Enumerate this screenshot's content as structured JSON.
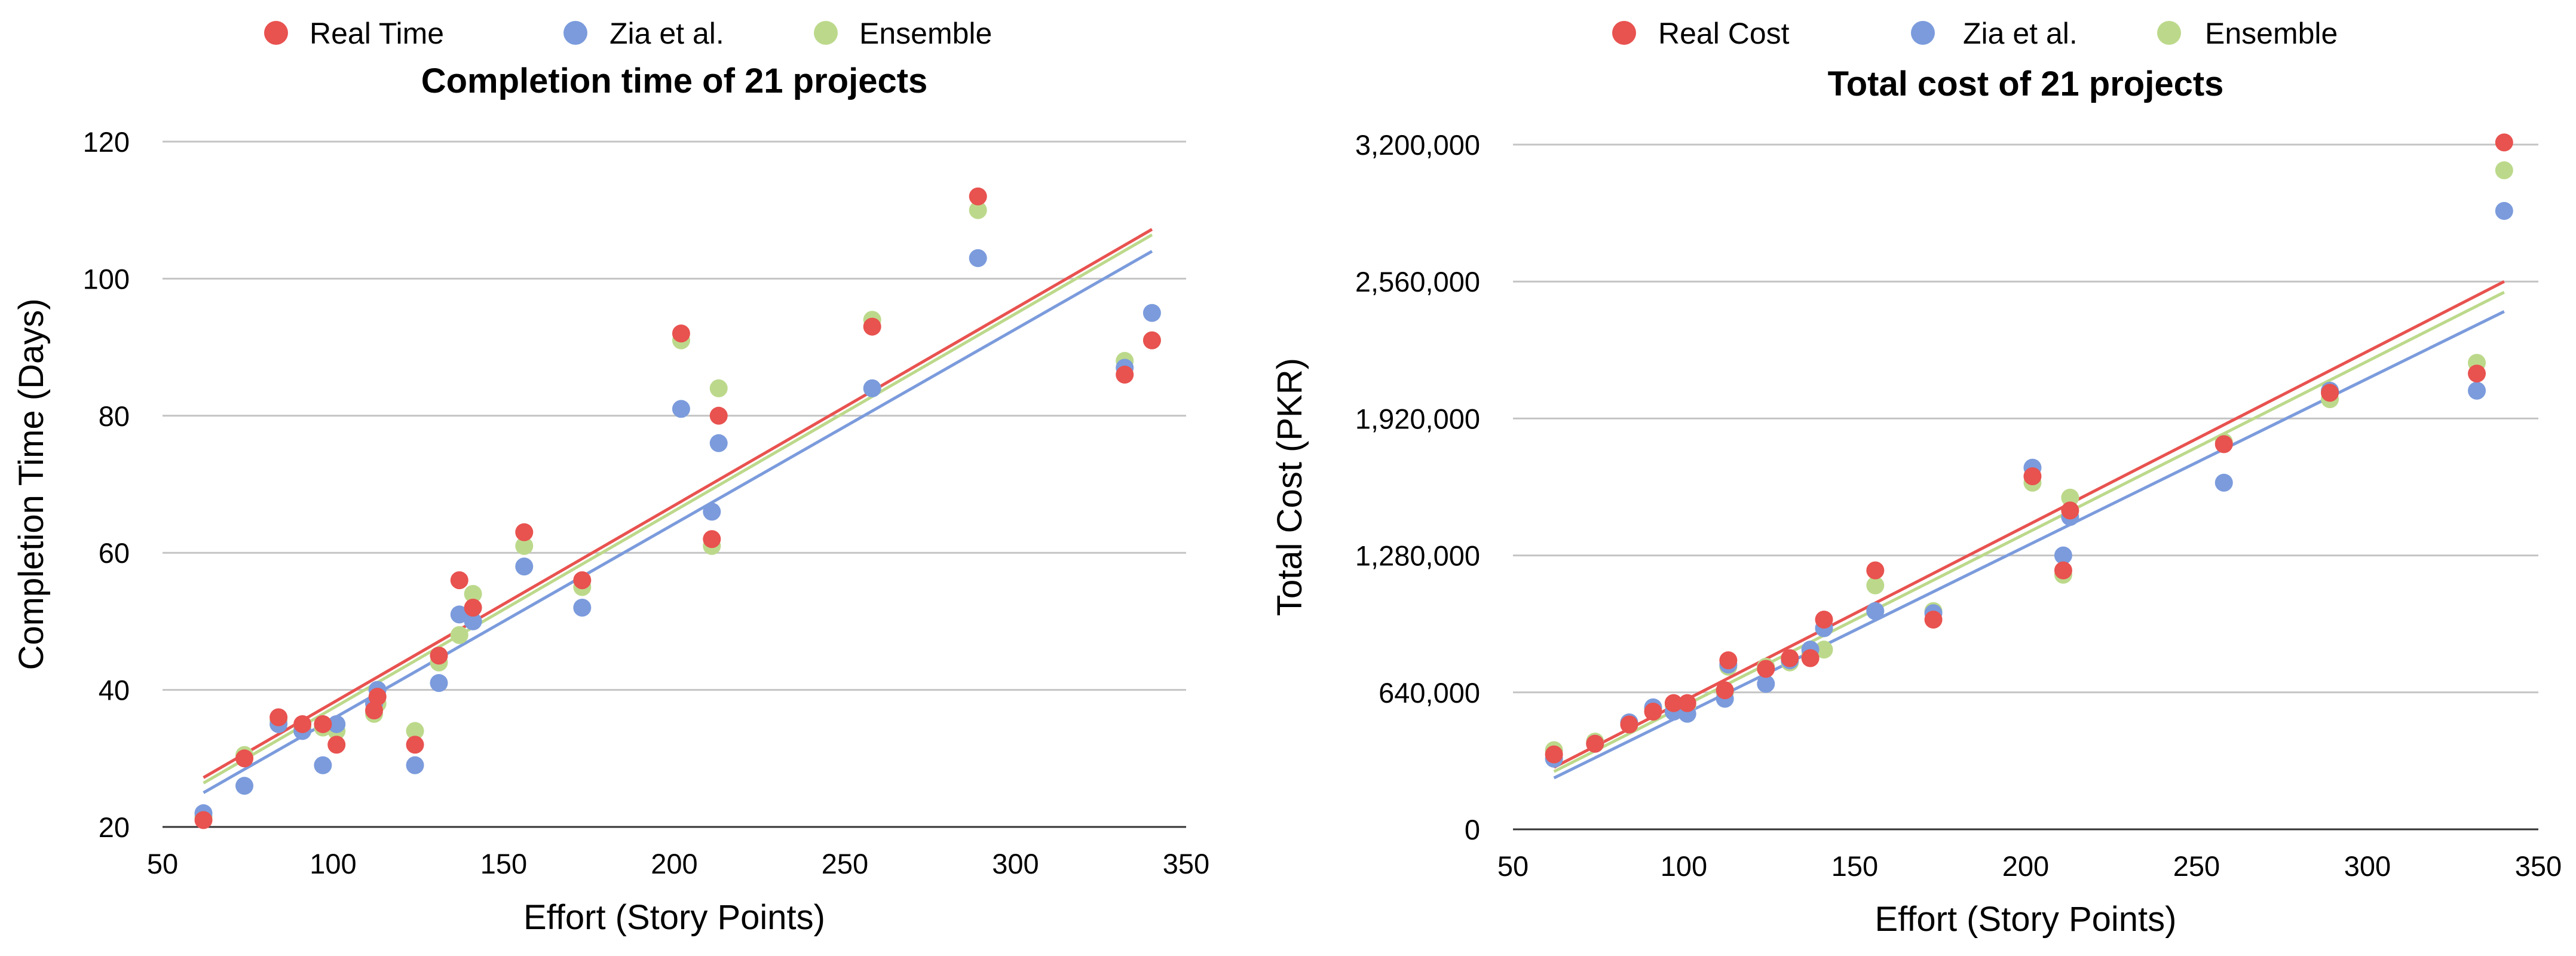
{
  "chart_data": [
    {
      "type": "scatter",
      "title": "Completion time of 21 projects",
      "xlabel": "Effort (Story Points)",
      "ylabel": "Completion Time (Days)",
      "xlim": [
        50,
        350
      ],
      "ylim": [
        20,
        120
      ],
      "xticks": [
        50,
        100,
        150,
        200,
        250,
        300,
        350
      ],
      "yticks": [
        20,
        40,
        60,
        80,
        100,
        120
      ],
      "y_tick_labels": [
        "20",
        "40",
        "60",
        "80",
        "100",
        "120"
      ],
      "grid": "horizontal",
      "legend": "top",
      "series": [
        {
          "name": "Real Time",
          "color": "#e8524f",
          "trendline": [
            [
              62,
              27.2
            ],
            [
              340,
              107.2
            ]
          ],
          "points": [
            [
              62,
              21
            ],
            [
              74,
              30
            ],
            [
              84,
              36
            ],
            [
              91,
              35
            ],
            [
              97,
              35
            ],
            [
              101,
              32
            ],
            [
              112,
              37
            ],
            [
              113,
              39
            ],
            [
              124,
              32
            ],
            [
              131,
              45
            ],
            [
              137,
              56
            ],
            [
              141,
              52
            ],
            [
              156,
              63
            ],
            [
              173,
              56
            ],
            [
              202,
              92
            ],
            [
              211,
              62
            ],
            [
              213,
              80
            ],
            [
              258,
              93
            ],
            [
              289,
              112
            ],
            [
              332,
              86
            ],
            [
              340,
              91
            ]
          ]
        },
        {
          "name": "Zia et al.",
          "color": "#7b9bdc",
          "trendline": [
            [
              62,
              25.0
            ],
            [
              340,
              104.0
            ]
          ],
          "points": [
            [
              62,
              22
            ],
            [
              74,
              26
            ],
            [
              84,
              35
            ],
            [
              91,
              34
            ],
            [
              97,
              29
            ],
            [
              101,
              35
            ],
            [
              112,
              38
            ],
            [
              113,
              40
            ],
            [
              124,
              29
            ],
            [
              131,
              41
            ],
            [
              137,
              51
            ],
            [
              141,
              50
            ],
            [
              156,
              58
            ],
            [
              173,
              52
            ],
            [
              202,
              81
            ],
            [
              211,
              66
            ],
            [
              213,
              76
            ],
            [
              258,
              84
            ],
            [
              289,
              103
            ],
            [
              332,
              87
            ],
            [
              340,
              95
            ]
          ]
        },
        {
          "name": "Ensemble",
          "color": "#bcd98b",
          "trendline": [
            [
              62,
              26.4
            ],
            [
              340,
              106.4
            ]
          ],
          "points": [
            [
              62,
              21.5
            ],
            [
              74,
              30.5
            ],
            [
              84,
              35.5
            ],
            [
              91,
              34.5
            ],
            [
              97,
              34.5
            ],
            [
              101,
              34
            ],
            [
              112,
              36.5
            ],
            [
              113,
              38
            ],
            [
              124,
              34
            ],
            [
              131,
              44
            ],
            [
              137,
              48
            ],
            [
              141,
              54
            ],
            [
              156,
              61
            ],
            [
              173,
              55
            ],
            [
              202,
              91
            ],
            [
              211,
              61
            ],
            [
              213,
              84
            ],
            [
              258,
              94
            ],
            [
              289,
              110
            ],
            [
              332,
              88
            ],
            [
              340,
              91
            ]
          ]
        }
      ]
    },
    {
      "type": "scatter",
      "title": "Total cost of 21 projects",
      "xlabel": "Effort (Story Points)",
      "ylabel": "Total Cost (PKR)",
      "xlim": [
        50,
        350
      ],
      "ylim": [
        0,
        3200000
      ],
      "xticks": [
        50,
        100,
        150,
        200,
        250,
        300,
        350
      ],
      "yticks": [
        0,
        640000,
        1280000,
        1920000,
        2560000,
        3200000
      ],
      "y_tick_labels": [
        "0",
        "640,000",
        "1,280,000",
        "1,920,000",
        "2,560,000",
        "3,200,000"
      ],
      "grid": "horizontal",
      "legend": "top",
      "series": [
        {
          "name": "Real Cost",
          "color": "#e8524f",
          "trendline": [
            [
              62,
              290000
            ],
            [
              340,
              2560000
            ]
          ],
          "points": [
            [
              62,
              350000
            ],
            [
              74,
              400000
            ],
            [
              84,
              490000
            ],
            [
              91,
              550000
            ],
            [
              97,
              590000
            ],
            [
              101,
              590000
            ],
            [
              112,
              650000
            ],
            [
              113,
              790000
            ],
            [
              124,
              750000
            ],
            [
              131,
              800000
            ],
            [
              137,
              800000
            ],
            [
              141,
              980000
            ],
            [
              156,
              1210000
            ],
            [
              173,
              980000
            ],
            [
              202,
              1650000
            ],
            [
              211,
              1210000
            ],
            [
              213,
              1490000
            ],
            [
              258,
              1800000
            ],
            [
              289,
              2040000
            ],
            [
              332,
              2130000
            ],
            [
              340,
              3210000
            ]
          ]
        },
        {
          "name": "Zia et al.",
          "color": "#7b9bdc",
          "trendline": [
            [
              62,
              240000
            ],
            [
              340,
              2420000
            ]
          ],
          "points": [
            [
              62,
              330000
            ],
            [
              74,
              400000
            ],
            [
              84,
              500000
            ],
            [
              91,
              570000
            ],
            [
              97,
              550000
            ],
            [
              101,
              540000
            ],
            [
              112,
              610000
            ],
            [
              113,
              770000
            ],
            [
              124,
              680000
            ],
            [
              131,
              790000
            ],
            [
              137,
              840000
            ],
            [
              141,
              940000
            ],
            [
              156,
              1020000
            ],
            [
              173,
              1010000
            ],
            [
              202,
              1690000
            ],
            [
              211,
              1280000
            ],
            [
              213,
              1460000
            ],
            [
              258,
              1620000
            ],
            [
              289,
              2050000
            ],
            [
              332,
              2050000
            ],
            [
              340,
              2890000
            ]
          ]
        },
        {
          "name": "Ensemble",
          "color": "#bcd98b",
          "trendline": [
            [
              62,
              270000
            ],
            [
              340,
              2510000
            ]
          ],
          "points": [
            [
              62,
              370000
            ],
            [
              74,
              410000
            ],
            [
              84,
              490000
            ],
            [
              91,
              560000
            ],
            [
              97,
              580000
            ],
            [
              101,
              580000
            ],
            [
              112,
              640000
            ],
            [
              113,
              760000
            ],
            [
              124,
              760000
            ],
            [
              131,
              780000
            ],
            [
              137,
              820000
            ],
            [
              141,
              840000
            ],
            [
              156,
              1140000
            ],
            [
              173,
              1020000
            ],
            [
              202,
              1620000
            ],
            [
              211,
              1190000
            ],
            [
              213,
              1550000
            ],
            [
              258,
              1810000
            ],
            [
              289,
              2010000
            ],
            [
              332,
              2180000
            ],
            [
              340,
              3080000
            ]
          ]
        }
      ]
    }
  ]
}
